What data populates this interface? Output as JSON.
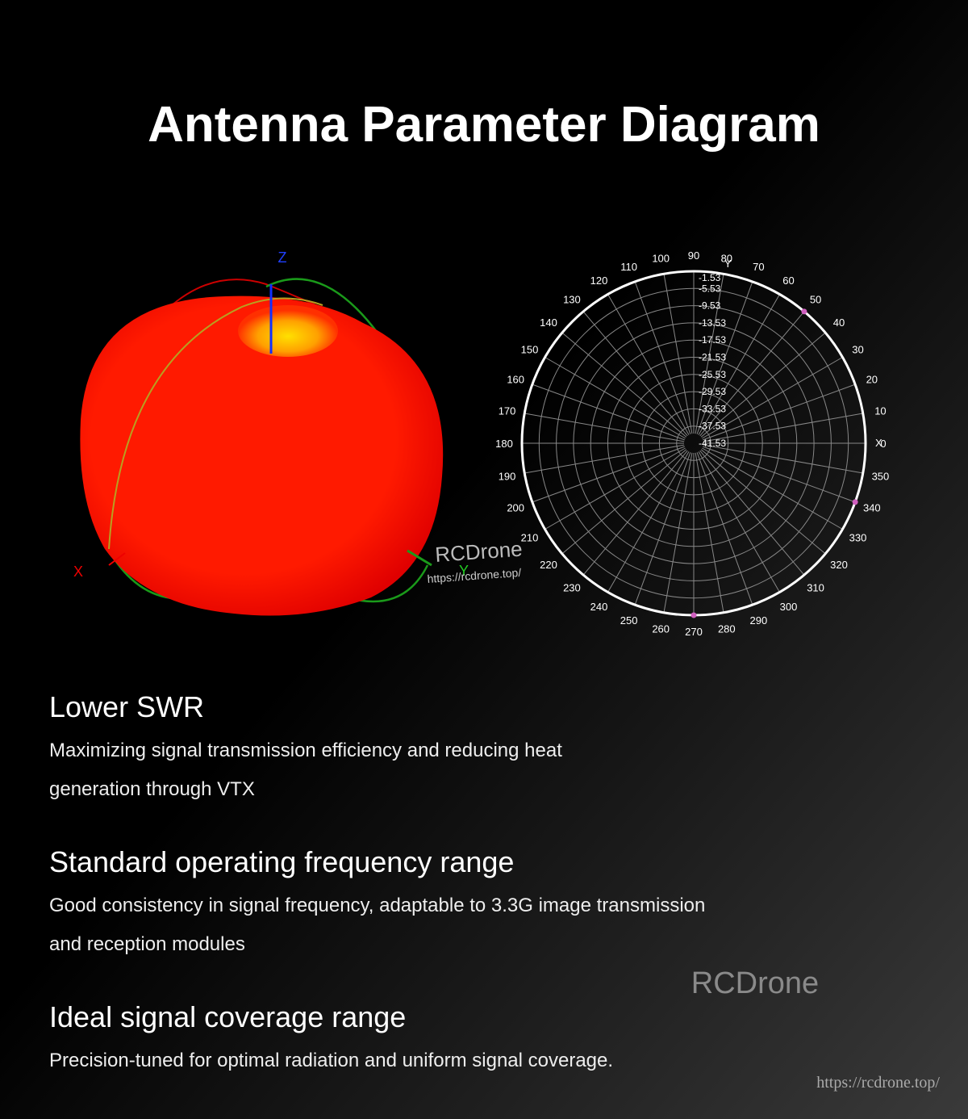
{
  "header": {
    "title": "Antenna Parameter Diagram"
  },
  "pattern3d": {
    "axis_labels": {
      "x": "X",
      "y": "Y",
      "z": "Z"
    },
    "watermark": "RCDrone",
    "watermark_url": "https://rcdrone.top/"
  },
  "polar": {
    "angles": [
      0,
      10,
      20,
      30,
      40,
      50,
      60,
      70,
      80,
      90,
      100,
      110,
      120,
      130,
      140,
      150,
      160,
      170,
      180,
      190,
      200,
      210,
      220,
      230,
      240,
      250,
      260,
      270,
      280,
      290,
      300,
      310,
      320,
      330,
      340,
      350
    ],
    "radial_labels": [
      "-1.53",
      "-5.53",
      "-9.53",
      "-13.53",
      "-17.53",
      "-21.53",
      "-25.53",
      "-29.53",
      "-33.53",
      "-37.53",
      "-41.53"
    ],
    "axis_labels": {
      "x": "X",
      "y": "Y"
    }
  },
  "sections": [
    {
      "heading": "Lower SWR",
      "lines": [
        "Maximizing signal transmission efficiency and reducing heat",
        "generation through VTX"
      ]
    },
    {
      "heading": "Standard operating frequency range",
      "lines": [
        "Good consistency in signal frequency, adaptable to 3.3G image transmission",
        "and reception modules"
      ]
    },
    {
      "heading": "Ideal signal coverage range",
      "lines": [
        "Precision-tuned for optimal radiation and uniform signal coverage."
      ]
    }
  ],
  "footer": {
    "watermark": "RCDrone",
    "url": "https://rcdrone.top/"
  }
}
